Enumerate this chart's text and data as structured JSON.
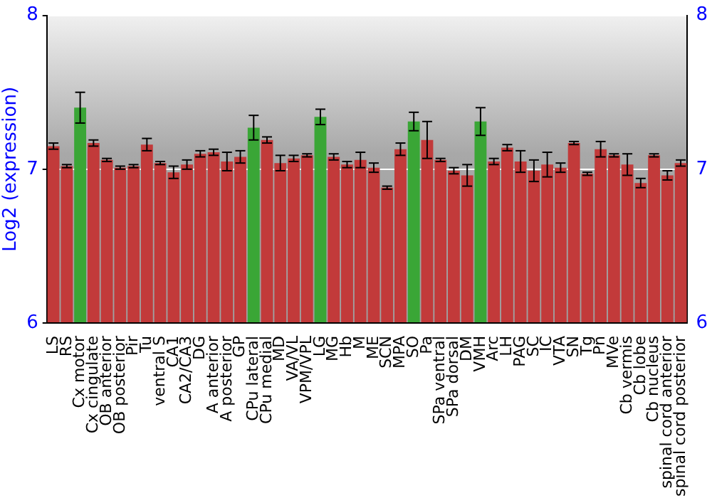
{
  "chart_data": {
    "type": "bar",
    "ylabel": "Log2 (expression)",
    "categories": [
      "LS",
      "RS",
      "Cx motor",
      "Cx cingulate",
      "OB anterior",
      "OB posterior",
      "Pir",
      "Tu",
      "ventral S",
      "CA1",
      "CA2/CA3",
      "DG",
      "A anterior",
      "A posterior",
      "GP",
      "CPu lateral",
      "CPu medial",
      "MD",
      "VA/VL",
      "VPM/VPL",
      "LG",
      "MG",
      "Hb",
      "M",
      "ME",
      "SCN",
      "MPA",
      "SO",
      "Pa",
      "SPa ventral",
      "SPa dorsal",
      "DM",
      "VMH",
      "Arc",
      "LH",
      "PAG",
      "SC",
      "IC",
      "VTA",
      "SN",
      "Tg",
      "Pn",
      "MVe",
      "Cb vermis",
      "Cb lobe",
      "Cb nucleus",
      "spinal cord anterior",
      "spinal cord posterior"
    ],
    "values": [
      7.15,
      7.02,
      7.4,
      7.17,
      7.06,
      7.01,
      7.02,
      7.16,
      7.04,
      6.98,
      7.03,
      7.1,
      7.11,
      7.05,
      7.08,
      7.27,
      7.19,
      7.04,
      7.07,
      7.09,
      7.34,
      7.08,
      7.03,
      7.06,
      7.01,
      6.88,
      7.13,
      7.31,
      7.19,
      7.06,
      6.99,
      6.96,
      7.31,
      7.05,
      7.14,
      7.05,
      6.99,
      7.03,
      7.01,
      7.17,
      6.97,
      7.13,
      7.09,
      7.03,
      6.91,
      7.09,
      6.96,
      7.04
    ],
    "errors": [
      0.02,
      0.01,
      0.1,
      0.02,
      0.01,
      0.01,
      0.01,
      0.04,
      0.01,
      0.04,
      0.03,
      0.02,
      0.02,
      0.06,
      0.04,
      0.08,
      0.02,
      0.05,
      0.02,
      0.01,
      0.05,
      0.02,
      0.02,
      0.05,
      0.03,
      0.01,
      0.04,
      0.06,
      0.12,
      0.01,
      0.02,
      0.07,
      0.09,
      0.02,
      0.02,
      0.07,
      0.07,
      0.08,
      0.03,
      0.01,
      0.01,
      0.05,
      0.01,
      0.07,
      0.03,
      0.01,
      0.03,
      0.02
    ],
    "colors": [
      "#c23a3a",
      "#c23a3a",
      "#3aa636",
      "#c23a3a",
      "#c23a3a",
      "#c23a3a",
      "#c23a3a",
      "#c23a3a",
      "#c23a3a",
      "#c23a3a",
      "#c23a3a",
      "#c23a3a",
      "#c23a3a",
      "#c23a3a",
      "#c23a3a",
      "#3aa636",
      "#c23a3a",
      "#c23a3a",
      "#c23a3a",
      "#c23a3a",
      "#3aa636",
      "#c23a3a",
      "#c23a3a",
      "#c23a3a",
      "#c23a3a",
      "#c23a3a",
      "#c23a3a",
      "#3aa636",
      "#c23a3a",
      "#c23a3a",
      "#c23a3a",
      "#c23a3a",
      "#3aa636",
      "#c23a3a",
      "#c23a3a",
      "#c23a3a",
      "#c23a3a",
      "#c23a3a",
      "#c23a3a",
      "#c23a3a",
      "#c23a3a",
      "#c23a3a",
      "#c23a3a",
      "#c23a3a",
      "#c23a3a",
      "#c23a3a",
      "#c23a3a",
      "#c23a3a"
    ],
    "ylim": [
      6,
      8
    ],
    "yticks": [
      6,
      7,
      8
    ],
    "y2lim": [
      6,
      8
    ],
    "y2ticks": [
      6,
      7,
      8
    ],
    "grid": "y",
    "legend": false
  }
}
